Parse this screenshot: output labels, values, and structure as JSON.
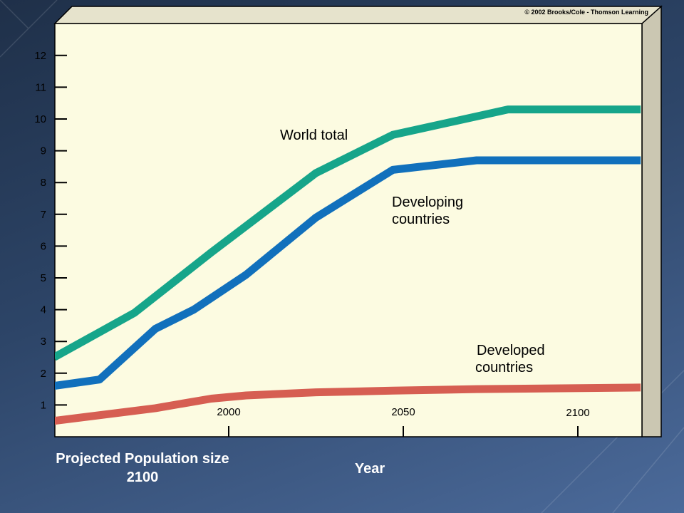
{
  "slide": {
    "caption": "Projected Population size 2100",
    "caption_line1": "Projected Population size",
    "caption_line2": "2100",
    "xlabel": "Year"
  },
  "chart_data": {
    "type": "line",
    "title": "",
    "xlabel": "Year",
    "ylabel": "",
    "copyright": "© 2002 Brooks/Cole - Thomson Learning",
    "x_ticks": [
      2000,
      2050,
      2100
    ],
    "y_ticks": [
      1,
      2,
      3,
      4,
      5,
      6,
      7,
      8,
      9,
      10,
      11,
      12
    ],
    "xlim": [
      1950,
      2118
    ],
    "ylim": [
      0,
      12.8
    ],
    "grid": false,
    "series": [
      {
        "name": "World total",
        "label_lines": [
          "World total"
        ],
        "color": "#16a58a",
        "x": [
          1950,
          1973,
          1995,
          2025,
          2047,
          2080,
          2118
        ],
        "y": [
          2.5,
          3.9,
          5.8,
          8.3,
          9.5,
          10.3,
          10.3
        ]
      },
      {
        "name": "Developing countries",
        "label_lines": [
          "Developing",
          "countries"
        ],
        "color": "#1170bc",
        "x": [
          1950,
          1963,
          1979,
          1990,
          2005,
          2025,
          2047,
          2071,
          2118
        ],
        "y": [
          1.6,
          1.8,
          3.4,
          4.0,
          5.1,
          6.9,
          8.4,
          8.7,
          8.7
        ]
      },
      {
        "name": "Developed countries",
        "label_lines": [
          "Developed",
          "countries"
        ],
        "color": "#d65e52",
        "x": [
          1950,
          1979,
          1995,
          2005,
          2025,
          2047,
          2071,
          2118
        ],
        "y": [
          0.5,
          0.9,
          1.2,
          1.3,
          1.4,
          1.45,
          1.5,
          1.55
        ]
      }
    ]
  }
}
